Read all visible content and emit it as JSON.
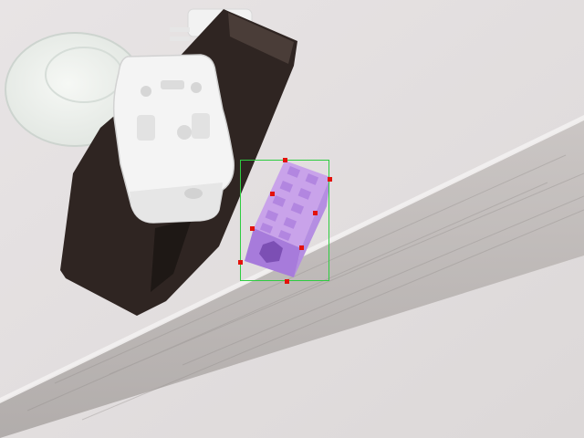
{
  "scene": {
    "description_label": "",
    "colors": {
      "table": "#e3dfe0",
      "tape": "#b9b4b2",
      "plate": "#f2f4f1",
      "block": "#c9a3ea",
      "block_dark": "#9a6fce",
      "case": "#2f2522",
      "holder": "#f4f4f4",
      "bbox": "#2ecc40",
      "keypoint": "#e3120b"
    }
  },
  "annotation": {
    "type": "bounding-box-with-keypoints",
    "keypoint_count": 8
  }
}
